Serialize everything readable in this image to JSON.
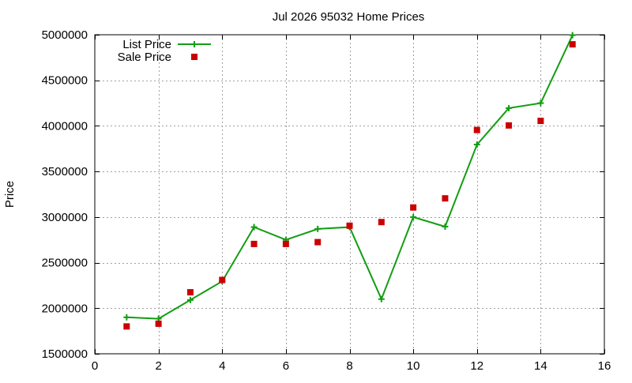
{
  "chart_data": {
    "type": "line",
    "title": "Jul 2026 95032 Home Prices",
    "xlabel": "",
    "ylabel": "Price",
    "xlim": [
      0,
      16
    ],
    "ylim": [
      1500000,
      5000000
    ],
    "x_ticks": [
      0,
      2,
      4,
      6,
      8,
      10,
      12,
      14,
      16
    ],
    "y_ticks": [
      1500000,
      2000000,
      2500000,
      3000000,
      3500000,
      4000000,
      4500000,
      5000000
    ],
    "x_tick_labels": [
      "0",
      "2",
      "4",
      "6",
      "8",
      "10",
      "12",
      "14",
      "16"
    ],
    "y_tick_labels": [
      "1500000",
      "2000000",
      "2500000",
      "3000000",
      "3500000",
      "4000000",
      "4500000",
      "5000000"
    ],
    "grid": true,
    "legend_position": "top-left",
    "series": [
      {
        "name": "List Price",
        "style": "lines+points",
        "marker": "plus",
        "color": "#119e11",
        "x": [
          1,
          2,
          3,
          4,
          5,
          6,
          7,
          8,
          9,
          10,
          11,
          12,
          13,
          14,
          15
        ],
        "values": [
          1900000,
          1885000,
          2090000,
          2295000,
          2890000,
          2750000,
          2870000,
          2890000,
          2100000,
          3000000,
          2895000,
          3795000,
          4195000,
          4250000,
          4995000
        ]
      },
      {
        "name": "Sale Price",
        "style": "points",
        "marker": "square",
        "color": "#cc0000",
        "x": [
          1,
          2,
          3,
          4,
          5,
          6,
          7,
          8,
          9,
          10,
          11,
          12,
          13,
          14,
          15
        ],
        "values": [
          1800000,
          1830000,
          2175000,
          2310000,
          2705000,
          2705000,
          2725000,
          2905000,
          2945000,
          3105000,
          3205000,
          3955000,
          4005000,
          4055000,
          4895000
        ]
      }
    ]
  }
}
